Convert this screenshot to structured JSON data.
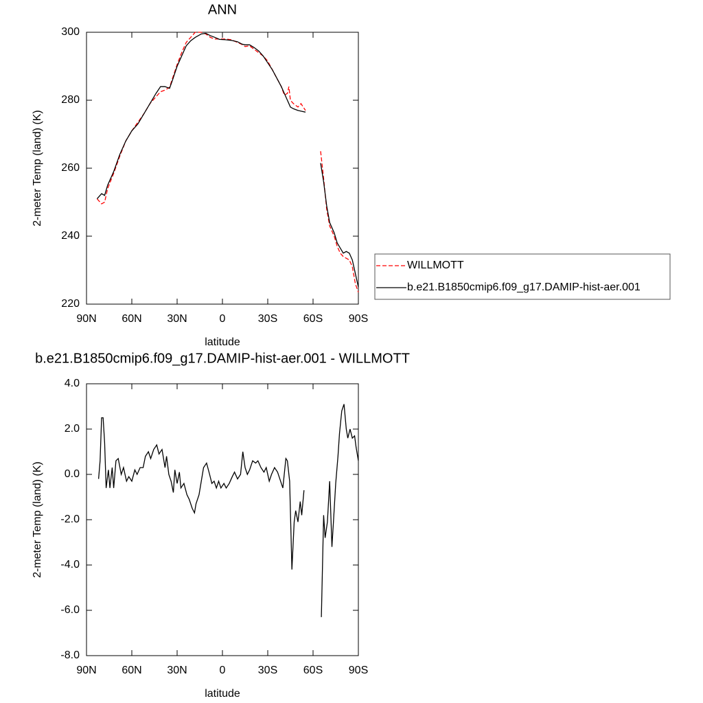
{
  "chart_data": [
    {
      "type": "line",
      "title": "ANN",
      "x_label": "latitude",
      "y_label": "2-meter Temp (land) (K)",
      "xlim": [
        90,
        -90
      ],
      "xticks": [
        {
          "value": 90,
          "label": "90N"
        },
        {
          "value": 60,
          "label": "60N"
        },
        {
          "value": 30,
          "label": "30N"
        },
        0,
        {
          "value": -30,
          "label": "30S"
        },
        {
          "value": -60,
          "label": "60S"
        },
        {
          "value": -90,
          "label": "90S"
        }
      ],
      "ylim": [
        220,
        300
      ],
      "yticks": [
        220,
        240,
        260,
        280,
        300
      ],
      "legend": "right",
      "x": [
        83,
        80,
        78,
        76,
        72,
        68,
        64,
        60,
        56,
        52,
        48,
        44,
        41,
        38,
        35,
        33,
        30,
        27,
        24,
        21,
        18,
        14,
        11,
        8,
        5,
        2,
        -2,
        -6,
        -10,
        -13,
        -15,
        -18,
        -21,
        -24,
        -27,
        -30,
        -33,
        -36,
        -39,
        -41,
        -43,
        -44,
        -45,
        -47,
        -50,
        -52,
        -55,
        -60,
        -65,
        -67,
        -69,
        -71,
        -74,
        -76,
        -78,
        -80,
        -82,
        -84,
        -86,
        -88,
        -90
      ],
      "series": [
        {
          "name": "WILLMOTT",
          "color": "#ff0000",
          "line_style": "dashed",
          "values": [
            251,
            249.5,
            250,
            254,
            258.5,
            263.5,
            268,
            271,
            273.5,
            276,
            279,
            281,
            282.5,
            283,
            283.8,
            286.5,
            290.5,
            294,
            297,
            298.5,
            300,
            300,
            299.5,
            298.5,
            298,
            298,
            298,
            297.8,
            297,
            296.4,
            295.8,
            296,
            295,
            294,
            293,
            291.5,
            289,
            286.5,
            284,
            281.5,
            282,
            284,
            280,
            279,
            278,
            279,
            277,
            null,
            265,
            257,
            248,
            243,
            240,
            237,
            235,
            234,
            233.5,
            233,
            231,
            226,
            223.5
          ]
        },
        {
          "name": "b.e21.B1850cmip6.f09_g17.DAMIP-hist-aer.001",
          "color": "#000000",
          "line_style": "solid",
          "values": [
            251,
            252.5,
            252,
            255,
            259,
            264,
            268,
            271,
            273,
            276,
            279,
            282,
            284,
            284,
            283.5,
            286,
            290,
            293,
            296,
            297.5,
            298.5,
            299.5,
            299.7,
            299,
            298.5,
            297.9,
            297.8,
            297.6,
            297.2,
            296.5,
            296.3,
            296.3,
            295.5,
            294.5,
            293,
            291,
            289,
            286.5,
            284,
            282,
            280,
            279,
            278,
            277.5,
            277,
            276.8,
            276.5,
            null,
            261.5,
            256,
            249,
            244,
            241,
            238,
            236.5,
            235,
            235.5,
            235,
            233,
            229,
            225
          ]
        }
      ]
    },
    {
      "type": "line",
      "title": "b.e21.B1850cmip6.f09_g17.DAMIP-hist-aer.001 - WILLMOTT",
      "x_label": "latitude",
      "y_label": "2-meter Temp (land) (K)",
      "xlim": [
        90,
        -90
      ],
      "xticks": [
        {
          "value": 90,
          "label": "90N"
        },
        {
          "value": 60,
          "label": "60N"
        },
        {
          "value": 30,
          "label": "30N"
        },
        0,
        {
          "value": -30,
          "label": "30S"
        },
        {
          "value": -60,
          "label": "60S"
        },
        {
          "value": -90,
          "label": "90S"
        }
      ],
      "ylim": [
        -8,
        4
      ],
      "yticks": [
        {
          "value": -8,
          "label": "-8.0"
        },
        {
          "value": -6,
          "label": "-6.0"
        },
        {
          "value": -4,
          "label": "-4.0"
        },
        {
          "value": -2,
          "label": "-2.0"
        },
        {
          "value": 0,
          "label": "0.0"
        },
        {
          "value": 2,
          "label": "2.0"
        },
        {
          "value": 4,
          "label": "4.0"
        }
      ],
      "x": [
        82,
        81,
        80,
        79,
        78,
        77,
        75.5,
        74.5,
        73,
        72,
        70.5,
        69,
        67,
        65.5,
        63.5,
        62,
        60,
        58,
        56.5,
        54.5,
        52.5,
        51,
        49,
        47.5,
        45.5,
        43.5,
        42,
        40,
        38,
        37,
        35.5,
        34,
        32.5,
        31.5,
        30,
        28.5,
        27.5,
        25.5,
        23.5,
        22,
        20,
        18.5,
        17.5,
        15.5,
        14,
        12.5,
        10.5,
        8.5,
        7,
        5.5,
        4,
        2.5,
        1,
        -1,
        -2.5,
        -4.5,
        -6.5,
        -8,
        -10,
        -12,
        -13.5,
        -15,
        -16.5,
        -18,
        -20,
        -22,
        -23.5,
        -25.5,
        -27.5,
        -29,
        -31,
        -32.5,
        -34.5,
        -36.5,
        -38,
        -40,
        -42,
        -43,
        -44.5,
        -46,
        -47.5,
        -48.5,
        -50,
        -51.5,
        -52.5,
        -54,
        -60,
        -65.5,
        -67,
        -68,
        -69.5,
        -71,
        -72.5,
        -73.5,
        -75,
        -76.5,
        -77.5,
        -79,
        -80.5,
        -82,
        -83,
        -84.5,
        -86,
        -87.5,
        -88.5,
        -90
      ],
      "series": [
        {
          "color": "#000000",
          "line_style": "solid",
          "values": [
            -0.2,
            0.6,
            2.5,
            2.5,
            1.4,
            -0.6,
            0.2,
            -0.6,
            0.3,
            -0.6,
            0.6,
            0.7,
            0,
            0.3,
            -0.3,
            -0.1,
            -0.3,
            0.2,
            0,
            0.3,
            0.3,
            0.8,
            1.0,
            0.7,
            1.1,
            1.3,
            0.9,
            1.1,
            0.3,
            0.8,
            0,
            -0.3,
            -0.8,
            0.2,
            -0.4,
            0.1,
            -0.6,
            -0.4,
            -0.9,
            -1.1,
            -1.5,
            -1.7,
            -1.3,
            -0.9,
            -0.3,
            0.3,
            0.5,
            0,
            -0.4,
            -0.3,
            -0.6,
            -0.3,
            -0.6,
            -0.4,
            -0.6,
            -0.4,
            -0.1,
            0.1,
            -0.2,
            0,
            1.0,
            0.3,
            0,
            0.2,
            0.6,
            0.5,
            0.6,
            0.3,
            0.1,
            0.3,
            -0.3,
            0,
            0.3,
            0.1,
            -0.2,
            -0.6,
            0.7,
            0.6,
            -0.3,
            -4.2,
            -2.1,
            -1.6,
            -2.1,
            -1.2,
            -1.8,
            -0.7,
            null,
            -6.3,
            -1.8,
            -2.8,
            -2.1,
            -0.3,
            -3.2,
            -2.1,
            -0.4,
            0.8,
            1.8,
            2.8,
            3.1,
            2.0,
            1.6,
            2.0,
            1.6,
            1.7,
            1.2,
            0.6
          ]
        }
      ]
    }
  ]
}
